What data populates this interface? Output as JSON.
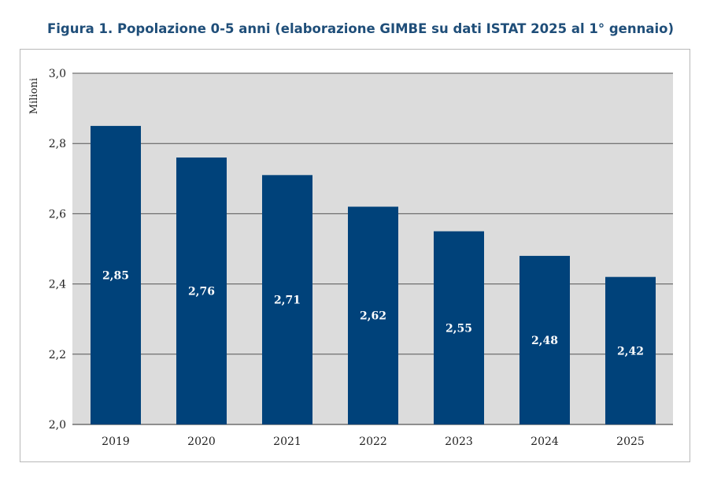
{
  "chart_data": {
    "type": "bar",
    "title": "Figura 1. Popolazione 0-5 anni (elaborazione GIMBE su dati ISTAT 2025 al 1° gennaio)",
    "xlabel": "",
    "ylabel": "Milioni",
    "categories": [
      "2019",
      "2020",
      "2021",
      "2022",
      "2023",
      "2024",
      "2025"
    ],
    "values": [
      2.85,
      2.76,
      2.71,
      2.62,
      2.55,
      2.48,
      2.42
    ],
    "value_labels": [
      "2,85",
      "2,76",
      "2,71",
      "2,62",
      "2,55",
      "2,48",
      "2,42"
    ],
    "ylim": [
      2.0,
      3.0
    ],
    "yticks": [
      2.0,
      2.2,
      2.4,
      2.6,
      2.8,
      3.0
    ],
    "ytick_labels": [
      "2,0",
      "2,2",
      "2,4",
      "2,6",
      "2,8",
      "3,0"
    ],
    "grid": true,
    "legend": "none",
    "colors": {
      "bar": "#00427a",
      "plot_background": "#dcdcdc",
      "gridline": "#555555",
      "title": "#1f4e79"
    }
  }
}
